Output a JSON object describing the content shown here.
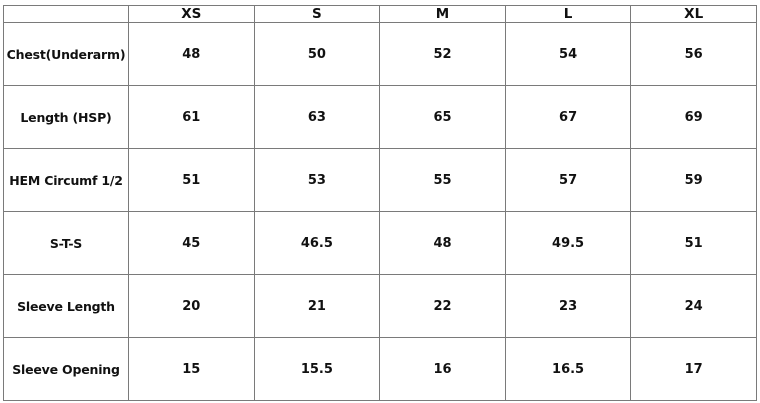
{
  "chart_data": {
    "type": "table",
    "columns": [
      "",
      "XS",
      "S",
      "M",
      "L",
      "XL"
    ],
    "rows": [
      {
        "label": "Chest(Underarm)",
        "values": [
          "48",
          "50",
          "52",
          "54",
          "56"
        ]
      },
      {
        "label": "Length (HSP)",
        "values": [
          "61",
          "63",
          "65",
          "67",
          "69"
        ]
      },
      {
        "label": "HEM Circumf 1/2",
        "values": [
          "51",
          "53",
          "55",
          "57",
          "59"
        ]
      },
      {
        "label": "S-T-S",
        "values": [
          "45",
          "46.5",
          "48",
          "49.5",
          "51"
        ]
      },
      {
        "label": "Sleeve Length",
        "values": [
          "20",
          "21",
          "22",
          "23",
          "24"
        ]
      },
      {
        "label": "Sleeve Opening",
        "values": [
          "15",
          "15.5",
          "16",
          "16.5",
          "17"
        ]
      }
    ]
  }
}
